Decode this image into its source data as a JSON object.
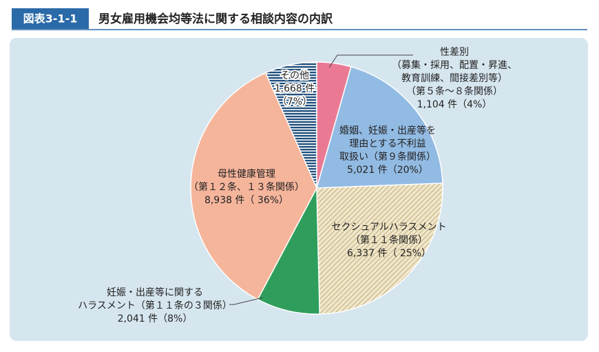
{
  "chart_data": {
    "type": "pie",
    "figure_label": "図表3-1-1",
    "title": "男女雇用機会均等法に関する相談内容の内訳",
    "categories": [
      [
        "性差別",
        "（募集・採用、配置・昇進、",
        "教育訓練、間接差別等）",
        "（第５条～８条関係）"
      ],
      [
        "婚姻、妊娠・出産等を",
        "理由とする不利益",
        "取扱い（第９条関係）"
      ],
      [
        "セクシュアルハラスメント",
        "（第１１条関係）"
      ],
      [
        "妊娠・出産等に関する",
        "ハラスメント（第１１条の３関係）"
      ],
      [
        "母性健康管理",
        "（第１２条、１３条関係）"
      ],
      [
        "その他"
      ]
    ],
    "values": [
      1104,
      5021,
      6337,
      2041,
      8938,
      1668
    ],
    "value_labels": [
      [
        "1,104 件（4%）"
      ],
      [
        "5,021 件（20%）"
      ],
      [
        "6,337 件（ 25%）"
      ],
      [
        "2,041 件（8%）"
      ],
      [
        "8,938 件（ 36%）"
      ],
      [
        "1,668 件",
        "（7%）"
      ]
    ],
    "colors": [
      "#ea7a93",
      "#92bbe3",
      "#d8c79a",
      "#2f9e5c",
      "#f5b59b",
      "#1f4f7d"
    ],
    "patterns": [
      null,
      null,
      "hatch",
      null,
      null,
      "stripes"
    ]
  }
}
